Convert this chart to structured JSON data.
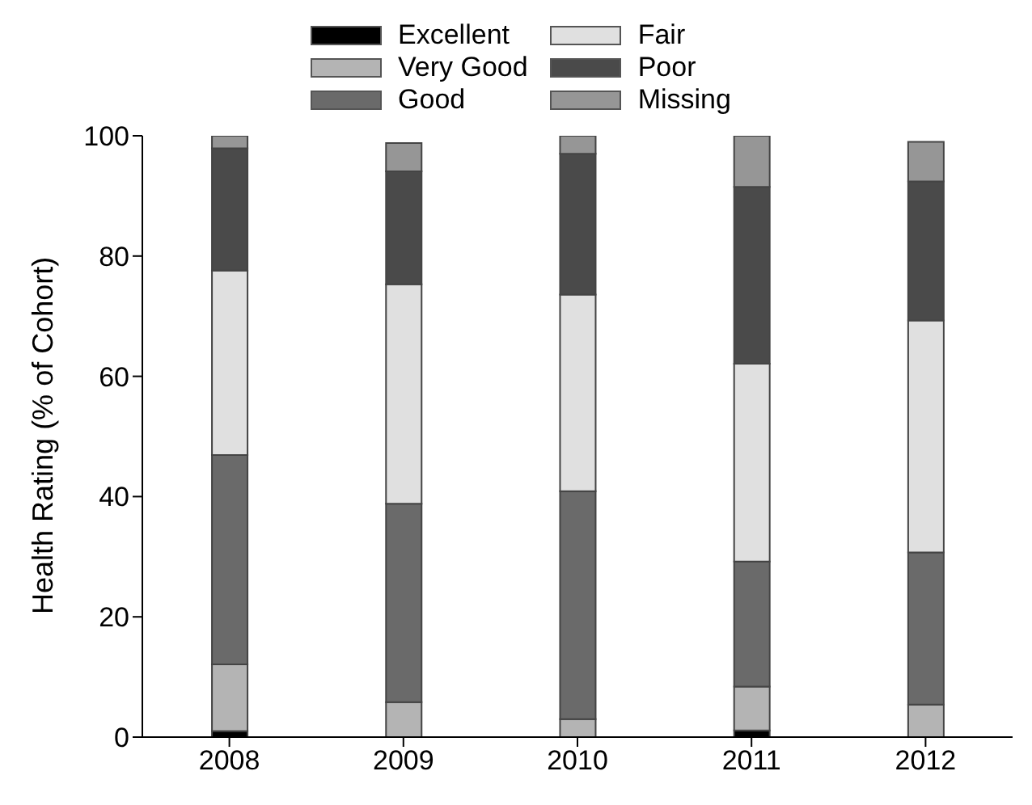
{
  "chart_data": {
    "type": "bar",
    "stacked": true,
    "ylabel": "Health Rating (% of Cohort)",
    "categories": [
      "2008",
      "2009",
      "2010",
      "2011",
      "2012"
    ],
    "ylim": [
      0,
      100
    ],
    "yticks": [
      0,
      20,
      40,
      60,
      80,
      100
    ],
    "grid": false,
    "legend": "top",
    "series": [
      {
        "name": "Excellent",
        "color": "#000000",
        "values": [
          1,
          0,
          0,
          1.1,
          0
        ]
      },
      {
        "name": "Very Good",
        "color": "#b4b4b4",
        "values": [
          11.1,
          5.8,
          3,
          7.3,
          5.4
        ]
      },
      {
        "name": "Good",
        "color": "#6a6a6a",
        "values": [
          34.8,
          33,
          37.9,
          20.8,
          25.3
        ]
      },
      {
        "name": "Fair",
        "color": "#e0e0e0",
        "values": [
          30.7,
          36.5,
          32.7,
          32.9,
          38.6
        ]
      },
      {
        "name": "Poor",
        "color": "#4a4a4a",
        "values": [
          20.3,
          18.8,
          23.4,
          29.4,
          23.1
        ]
      },
      {
        "name": "Missing",
        "color": "#969696",
        "values": [
          2.1,
          4.7,
          3,
          8.5,
          6.6
        ]
      }
    ]
  }
}
